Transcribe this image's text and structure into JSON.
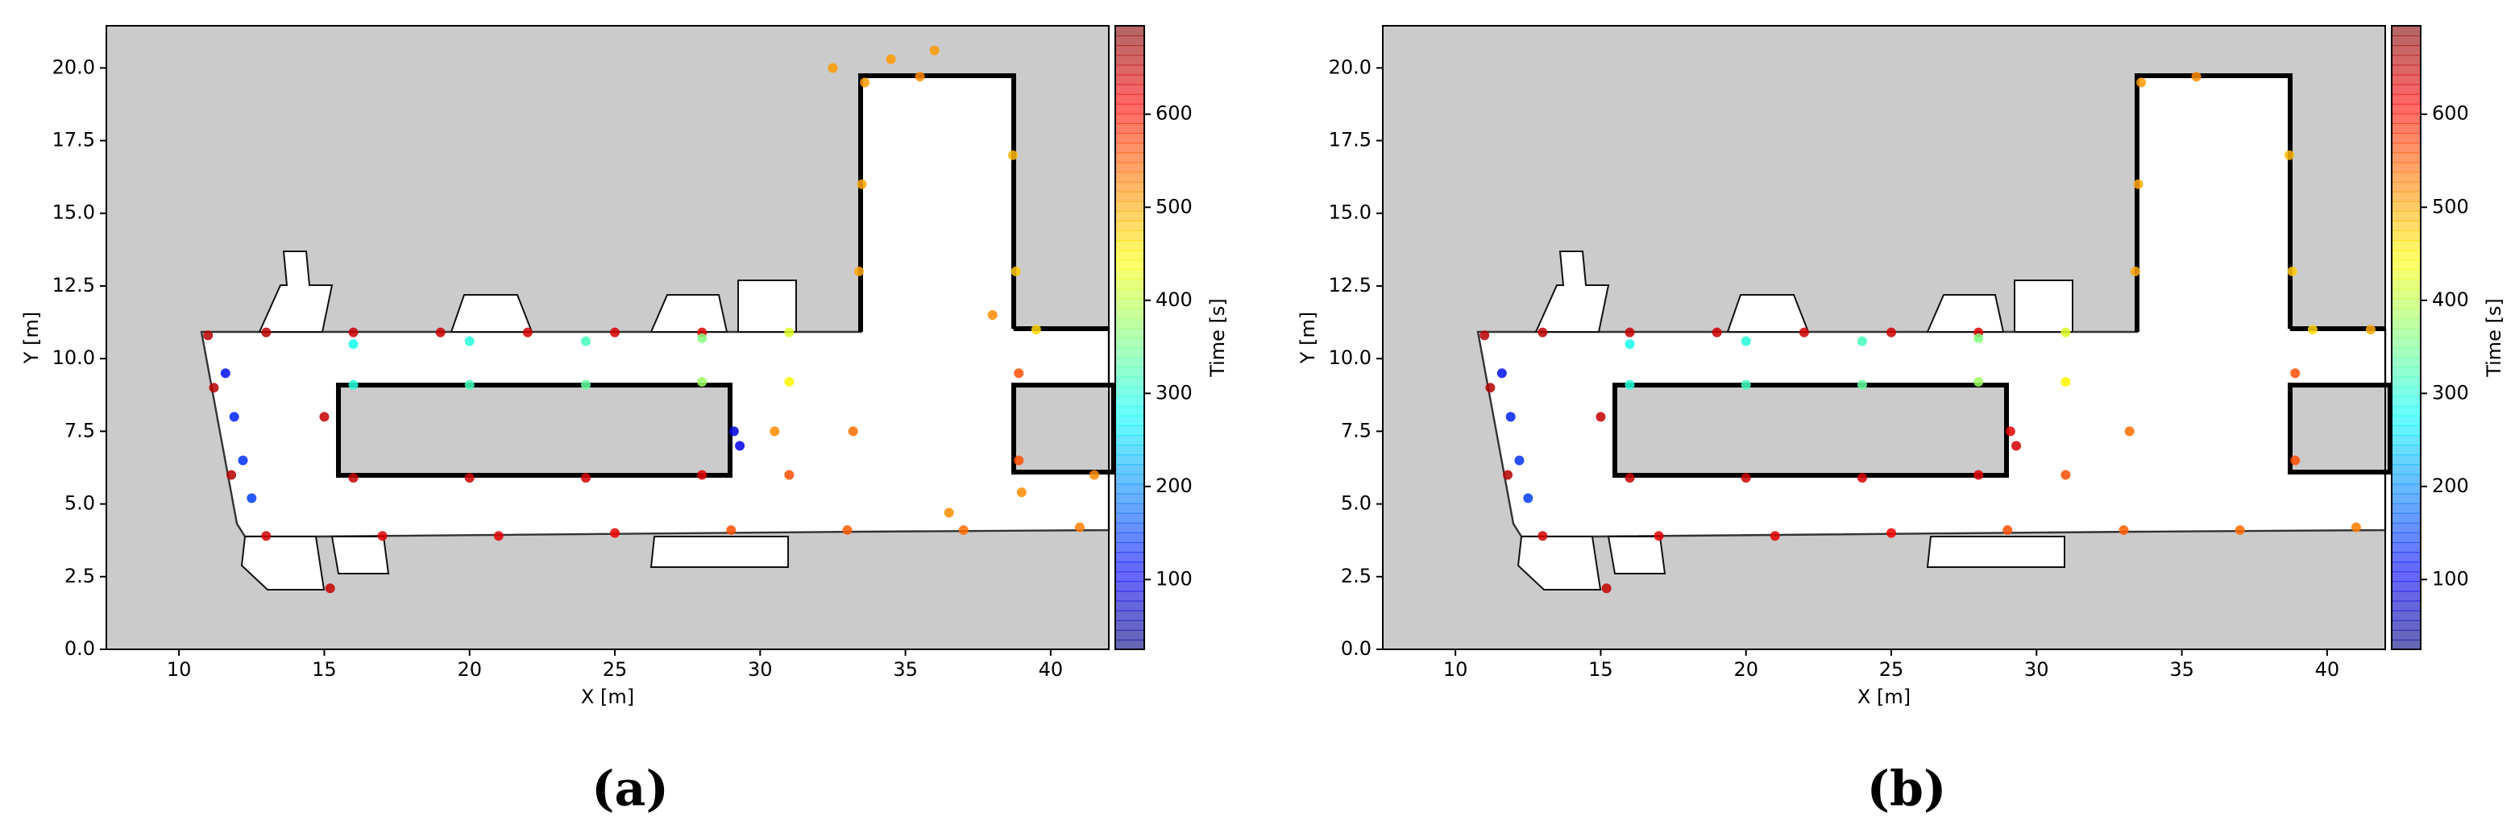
{
  "chart_data": [
    {
      "type": "scatter",
      "panel_label": "(a)",
      "xlabel": "X [m]",
      "ylabel": "Y [m]",
      "colorbar_label": "Time [s]",
      "colormap": "jet",
      "xlim": [
        7.5,
        42
      ],
      "ylim": [
        0,
        21.45
      ],
      "clim": [
        25,
        695
      ],
      "xticks": [
        10,
        15,
        20,
        25,
        30,
        35,
        40
      ],
      "yticks": [
        {
          "value": 0,
          "label": "0.0"
        },
        2.5,
        {
          "value": 5,
          "label": "5.0"
        },
        7.5,
        {
          "value": 10,
          "label": "10.0"
        },
        12.5,
        {
          "value": 15,
          "label": "15.0"
        },
        17.5,
        {
          "value": 20,
          "label": "20.0"
        }
      ],
      "cticks": [
        100,
        200,
        300,
        400,
        500,
        600
      ],
      "x": [
        11.0,
        13.0,
        16.0,
        19.0,
        22.0,
        25.0,
        28.0,
        16.0,
        20.0,
        24.0,
        28.0,
        31.0,
        16.0,
        20.0,
        24.0,
        28.0,
        31.0,
        16.0,
        20.0,
        24.0,
        28.0,
        31.0,
        13.0,
        17.0,
        21.0,
        25.0,
        29.0,
        33.0,
        37.0,
        41.0,
        11.6,
        11.9,
        12.2,
        12.5,
        11.2,
        11.8,
        15.2,
        15.0,
        29.1,
        29.3,
        33.4,
        33.5,
        33.6,
        35.5,
        38.7,
        38.8,
        38.9,
        38.9,
        33.2,
        32.5,
        34.5,
        36.0,
        36.5,
        39.0,
        41.5,
        30.5,
        39.5,
        38.0
      ],
      "y": [
        10.8,
        10.9,
        10.9,
        10.9,
        10.9,
        10.9,
        10.9,
        10.5,
        10.6,
        10.6,
        10.7,
        10.9,
        9.1,
        9.1,
        9.1,
        9.2,
        9.2,
        5.9,
        5.9,
        5.9,
        6.0,
        6.0,
        3.9,
        3.9,
        3.9,
        4.0,
        4.1,
        4.1,
        4.1,
        4.2,
        9.5,
        8.0,
        6.5,
        5.2,
        9.0,
        6.0,
        2.1,
        8.0,
        7.5,
        7.0,
        13.0,
        16.0,
        19.5,
        19.7,
        17.0,
        13.0,
        9.5,
        6.5,
        7.5,
        20.0,
        20.3,
        20.6,
        4.7,
        5.4,
        6.0,
        7.5,
        11.0,
        11.5
      ],
      "c": [
        660,
        655,
        650,
        645,
        640,
        640,
        635,
        290,
        300,
        320,
        360,
        420,
        300,
        320,
        340,
        380,
        450,
        650,
        645,
        640,
        630,
        560,
        640,
        630,
        630,
        620,
        560,
        550,
        540,
        530,
        120,
        130,
        140,
        150,
        660,
        660,
        650,
        650,
        90,
        100,
        500,
        500,
        510,
        520,
        490,
        480,
        560,
        560,
        540,
        510,
        510,
        510,
        520,
        520,
        520,
        520,
        470,
        520
      ]
    },
    {
      "type": "scatter",
      "panel_label": "(b)",
      "xlabel": "X [m]",
      "ylabel": "Y [m]",
      "colorbar_label": "Time [s]",
      "colormap": "jet",
      "xlim": [
        7.5,
        42
      ],
      "ylim": [
        0,
        21.45
      ],
      "clim": [
        25,
        695
      ],
      "xticks": [
        10,
        15,
        20,
        25,
        30,
        35,
        40
      ],
      "yticks": [
        {
          "value": 0,
          "label": "0.0"
        },
        2.5,
        {
          "value": 5,
          "label": "5.0"
        },
        7.5,
        {
          "value": 10,
          "label": "10.0"
        },
        12.5,
        {
          "value": 15,
          "label": "15.0"
        },
        17.5,
        {
          "value": 20,
          "label": "20.0"
        }
      ],
      "cticks": [
        100,
        200,
        300,
        400,
        500,
        600
      ],
      "x": [
        11.0,
        13.0,
        16.0,
        19.0,
        22.0,
        25.0,
        28.0,
        16.0,
        20.0,
        24.0,
        28.0,
        31.0,
        16.0,
        20.0,
        24.0,
        28.0,
        31.0,
        16.0,
        20.0,
        24.0,
        28.0,
        31.0,
        13.0,
        17.0,
        21.0,
        25.0,
        29.0,
        33.0,
        37.0,
        41.0,
        11.6,
        11.9,
        12.2,
        12.5,
        11.2,
        11.8,
        15.2,
        15.0,
        29.1,
        29.3,
        33.4,
        33.5,
        33.6,
        35.5,
        38.7,
        38.8,
        38.9,
        38.9,
        33.2,
        39.5,
        41.5
      ],
      "y": [
        10.8,
        10.9,
        10.9,
        10.9,
        10.9,
        10.9,
        10.9,
        10.5,
        10.6,
        10.6,
        10.7,
        10.9,
        9.1,
        9.1,
        9.1,
        9.2,
        9.2,
        5.9,
        5.9,
        5.9,
        6.0,
        6.0,
        3.9,
        3.9,
        3.9,
        4.0,
        4.1,
        4.1,
        4.1,
        4.2,
        9.5,
        8.0,
        6.5,
        5.2,
        9.0,
        6.0,
        2.1,
        8.0,
        7.5,
        7.0,
        13.0,
        16.0,
        19.5,
        19.7,
        17.0,
        13.0,
        9.5,
        6.5,
        7.5,
        11.0,
        11.0
      ],
      "c": [
        660,
        655,
        650,
        645,
        640,
        640,
        635,
        290,
        300,
        320,
        360,
        420,
        300,
        320,
        340,
        380,
        450,
        650,
        645,
        640,
        630,
        560,
        640,
        630,
        630,
        620,
        560,
        550,
        540,
        530,
        120,
        130,
        140,
        150,
        660,
        660,
        650,
        650,
        630,
        640,
        500,
        500,
        510,
        520,
        490,
        480,
        560,
        560,
        540,
        470,
        500
      ]
    }
  ]
}
